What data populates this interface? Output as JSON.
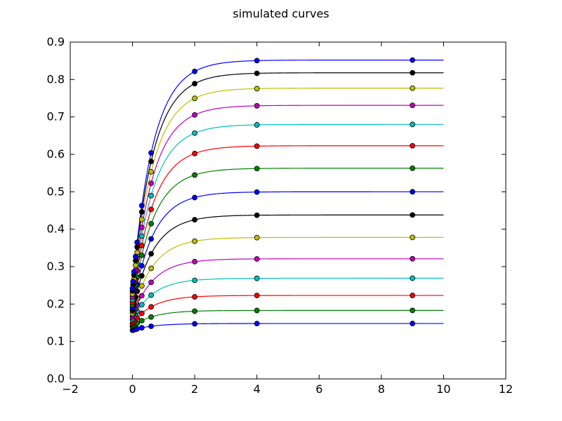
{
  "chart_data": {
    "type": "line",
    "title": "simulated curves",
    "xlabel": "",
    "ylabel": "",
    "xlim": [
      -2,
      12
    ],
    "ylim": [
      0.0,
      0.9
    ],
    "x_ticks": [
      "−2",
      "0",
      "2",
      "4",
      "6",
      "8",
      "10",
      "12"
    ],
    "y_ticks": [
      "0.0",
      "0.1",
      "0.2",
      "0.3",
      "0.4",
      "0.5",
      "0.6",
      "0.7",
      "0.8",
      "0.9"
    ],
    "grid": false,
    "legend": "none",
    "marker_x": [
      0,
      0.02,
      0.05,
      0.1,
      0.15,
      0.3,
      0.6,
      2,
      4,
      9
    ],
    "curve_x_range": [
      0,
      10
    ],
    "series": [
      {
        "color": "#0000ff",
        "start": 0.13,
        "plateau": 0.148,
        "rate": 1.5
      },
      {
        "color": "#008000",
        "start": 0.14,
        "plateau": 0.183,
        "rate": 1.5
      },
      {
        "color": "#ff0000",
        "start": 0.148,
        "plateau": 0.223,
        "rate": 1.5
      },
      {
        "color": "#00bfbf",
        "start": 0.158,
        "plateau": 0.269,
        "rate": 1.5
      },
      {
        "color": "#bf00bf",
        "start": 0.166,
        "plateau": 0.321,
        "rate": 1.5
      },
      {
        "color": "#bfbf00",
        "start": 0.175,
        "plateau": 0.378,
        "rate": 1.5
      },
      {
        "color": "#000000",
        "start": 0.183,
        "plateau": 0.438,
        "rate": 1.5
      },
      {
        "color": "#0000ff",
        "start": 0.19,
        "plateau": 0.5,
        "rate": 1.5
      },
      {
        "color": "#008000",
        "start": 0.198,
        "plateau": 0.563,
        "rate": 1.5
      },
      {
        "color": "#ff0000",
        "start": 0.205,
        "plateau": 0.623,
        "rate": 1.5
      },
      {
        "color": "#00bfbf",
        "start": 0.212,
        "plateau": 0.68,
        "rate": 1.5
      },
      {
        "color": "#bf00bf",
        "start": 0.219,
        "plateau": 0.731,
        "rate": 1.5
      },
      {
        "color": "#bfbf00",
        "start": 0.227,
        "plateau": 0.777,
        "rate": 1.5
      },
      {
        "color": "#000000",
        "start": 0.235,
        "plateau": 0.818,
        "rate": 1.5
      },
      {
        "color": "#0000ff",
        "start": 0.242,
        "plateau": 0.852,
        "rate": 1.5
      }
    ]
  }
}
